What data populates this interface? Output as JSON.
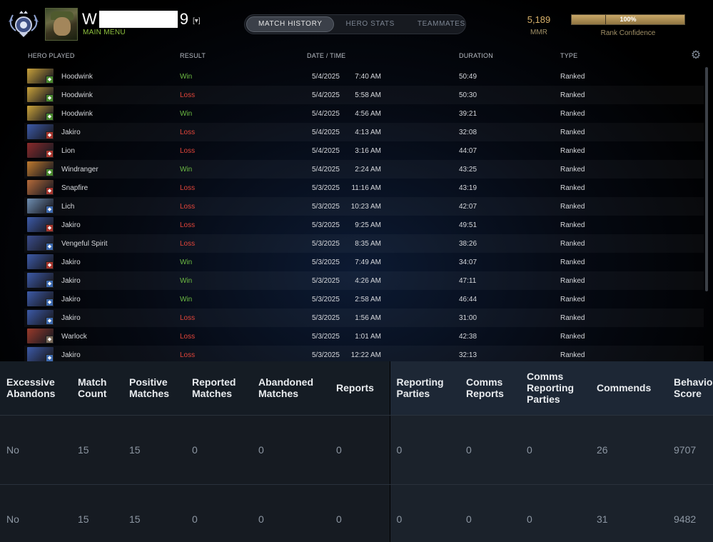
{
  "player": {
    "name_start": "W",
    "name_end": "9",
    "dropdown": "[▾]",
    "menu": "MAIN MENU"
  },
  "tabs": [
    {
      "label": "MATCH HISTORY",
      "active": true
    },
    {
      "label": "HERO STATS",
      "active": false
    },
    {
      "label": "TEAMMATES",
      "active": false
    }
  ],
  "mmr": {
    "value": "5,189",
    "label": "MMR"
  },
  "rank_confidence": {
    "percent": 100,
    "text": "100%",
    "label": "Rank Confidence"
  },
  "columns": {
    "hero": "HERO PLAYED",
    "result": "RESULT",
    "datetime": "DATE / TIME",
    "duration": "DURATION",
    "type": "TYPE"
  },
  "matches": [
    {
      "hero": "Hoodwink",
      "result": "Win",
      "date": "5/4/2025",
      "time": "7:40 AM",
      "duration": "50:49",
      "type": "Ranked",
      "color": "#c9a23a",
      "badge": "#4a8a2e"
    },
    {
      "hero": "Hoodwink",
      "result": "Loss",
      "date": "5/4/2025",
      "time": "5:58 AM",
      "duration": "50:30",
      "type": "Ranked",
      "color": "#c9a23a",
      "badge": "#4a8a2e"
    },
    {
      "hero": "Hoodwink",
      "result": "Win",
      "date": "5/4/2025",
      "time": "4:56 AM",
      "duration": "39:21",
      "type": "Ranked",
      "color": "#c9a23a",
      "badge": "#4a8a2e"
    },
    {
      "hero": "Jakiro",
      "result": "Loss",
      "date": "5/4/2025",
      "time": "4:13 AM",
      "duration": "32:08",
      "type": "Ranked",
      "color": "#3c5aa8",
      "badge": "#a8362e"
    },
    {
      "hero": "Lion",
      "result": "Loss",
      "date": "5/4/2025",
      "time": "3:16 AM",
      "duration": "44:07",
      "type": "Ranked",
      "color": "#8a2a2a",
      "badge": "#a8362e"
    },
    {
      "hero": "Windranger",
      "result": "Win",
      "date": "5/4/2025",
      "time": "2:24 AM",
      "duration": "43:25",
      "type": "Ranked",
      "color": "#c07a2e",
      "badge": "#4a8a2e"
    },
    {
      "hero": "Snapfire",
      "result": "Loss",
      "date": "5/3/2025",
      "time": "11:16 AM",
      "duration": "43:19",
      "type": "Ranked",
      "color": "#b66b3a",
      "badge": "#a8362e"
    },
    {
      "hero": "Lich",
      "result": "Loss",
      "date": "5/3/2025",
      "time": "10:23 AM",
      "duration": "42:07",
      "type": "Ranked",
      "color": "#6f8fb2",
      "badge": "#3d6ab0"
    },
    {
      "hero": "Jakiro",
      "result": "Loss",
      "date": "5/3/2025",
      "time": "9:25 AM",
      "duration": "49:51",
      "type": "Ranked",
      "color": "#3c5aa8",
      "badge": "#a8362e"
    },
    {
      "hero": "Vengeful Spirit",
      "result": "Loss",
      "date": "5/3/2025",
      "time": "8:35 AM",
      "duration": "38:26",
      "type": "Ranked",
      "color": "#3a4d8c",
      "badge": "#3d6ab0"
    },
    {
      "hero": "Jakiro",
      "result": "Win",
      "date": "5/3/2025",
      "time": "7:49 AM",
      "duration": "34:07",
      "type": "Ranked",
      "color": "#3c5aa8",
      "badge": "#a8362e"
    },
    {
      "hero": "Jakiro",
      "result": "Win",
      "date": "5/3/2025",
      "time": "4:26 AM",
      "duration": "47:11",
      "type": "Ranked",
      "color": "#3c5aa8",
      "badge": "#3d6ab0"
    },
    {
      "hero": "Jakiro",
      "result": "Win",
      "date": "5/3/2025",
      "time": "2:58 AM",
      "duration": "46:44",
      "type": "Ranked",
      "color": "#3c5aa8",
      "badge": "#3d6ab0"
    },
    {
      "hero": "Jakiro",
      "result": "Loss",
      "date": "5/3/2025",
      "time": "1:56 AM",
      "duration": "31:00",
      "type": "Ranked",
      "color": "#3c5aa8",
      "badge": "#3d6ab0"
    },
    {
      "hero": "Warlock",
      "result": "Loss",
      "date": "5/3/2025",
      "time": "1:01 AM",
      "duration": "42:38",
      "type": "Ranked",
      "color": "#9a3a2a",
      "badge": "#7a6a5a"
    },
    {
      "hero": "Jakiro",
      "result": "Loss",
      "date": "5/3/2025",
      "time": "12:22 AM",
      "duration": "32:13",
      "type": "Ranked",
      "color": "#3c5aa8",
      "badge": "#3d6ab0"
    }
  ],
  "behavior": {
    "headers": [
      "Excessive Abandons",
      "Match Count",
      "Positive Matches",
      "Reported Matches",
      "Abandoned Matches",
      "Reports",
      "Reporting Parties",
      "Comms Reports",
      "Comms Reporting Parties",
      "Commends",
      "Behavior Score"
    ],
    "rows": [
      [
        "No",
        "15",
        "15",
        "0",
        "0",
        "0",
        "0",
        "0",
        "0",
        "26",
        "9707"
      ],
      [
        "No",
        "15",
        "15",
        "0",
        "0",
        "0",
        "0",
        "0",
        "0",
        "31",
        "9482"
      ]
    ]
  }
}
